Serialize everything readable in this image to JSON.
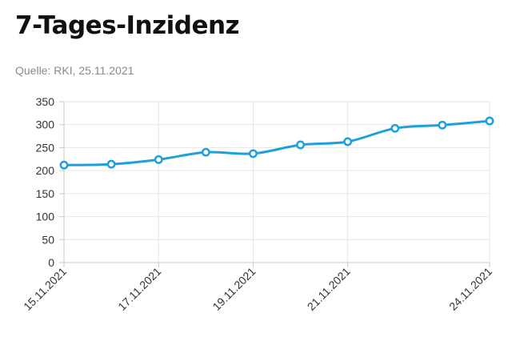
{
  "header": {
    "title": "7-Tages-Inzidenz",
    "source": "Quelle: RKI, 25.11.2021"
  },
  "colors": {
    "line": "#1fa0db",
    "grid": "#e6e6e6",
    "axis": "#c8c8c8"
  },
  "chart_data": {
    "type": "line",
    "x": [
      "15.11.2021",
      "16.11.2021",
      "17.11.2021",
      "18.11.2021",
      "19.11.2021",
      "20.11.2021",
      "21.11.2021",
      "22.11.2021",
      "23.11.2021",
      "24.11.2021"
    ],
    "x_tick_labels": [
      "15.11.2021",
      "17.11.2021",
      "19.11.2021",
      "21.11.2021",
      "24.11.2021"
    ],
    "series": [
      {
        "values": [
          212,
          214,
          224,
          240,
          237,
          256,
          263,
          292,
          299,
          308
        ]
      }
    ],
    "ylim": [
      0,
      350
    ],
    "y_ticks": [
      0,
      50,
      100,
      150,
      200,
      250,
      300,
      350
    ],
    "grid": true,
    "markers": true
  }
}
